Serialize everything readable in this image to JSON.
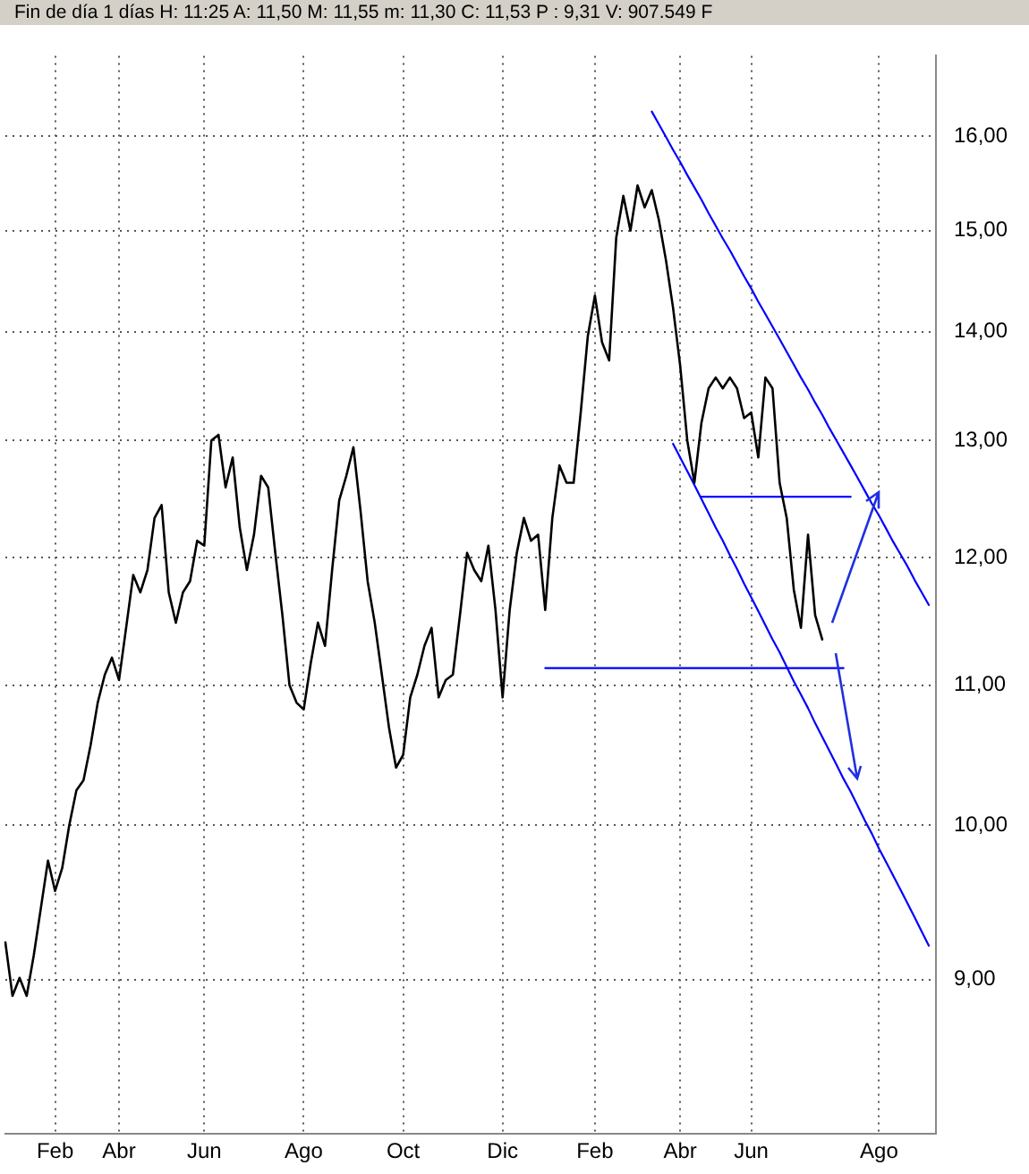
{
  "chart_data": {
    "type": "line",
    "title": "Fin de día 1 días H: 11:25 A: 11,50 M: 11,55 m: 11,30 C: 11,53 P : 9,31 V: 907.549 F",
    "log": "y",
    "grid": true,
    "legend": false,
    "marker": "none",
    "line_style": "solid",
    "ylim": [
      8.1,
      16.9
    ],
    "yticks": [
      {
        "value": 9,
        "label": "9,00"
      },
      {
        "value": 10,
        "label": "10,00"
      },
      {
        "value": 11,
        "label": "11,00"
      },
      {
        "value": 12,
        "label": "12,00"
      },
      {
        "value": 13,
        "label": "13,00"
      },
      {
        "value": 14,
        "label": "14,00"
      },
      {
        "value": 15,
        "label": "15,00"
      },
      {
        "value": 16,
        "label": "16,00"
      }
    ],
    "categories": [
      null,
      null,
      null,
      null,
      null,
      null,
      null,
      "Feb",
      null,
      null,
      null,
      null,
      null,
      null,
      null,
      null,
      "Abr",
      null,
      null,
      null,
      null,
      null,
      null,
      null,
      null,
      null,
      null,
      null,
      "Jun",
      null,
      null,
      null,
      null,
      null,
      null,
      null,
      null,
      null,
      null,
      null,
      null,
      null,
      "Ago",
      null,
      null,
      null,
      null,
      null,
      null,
      null,
      null,
      null,
      null,
      null,
      null,
      null,
      "Oct",
      null,
      null,
      null,
      null,
      null,
      null,
      null,
      null,
      null,
      null,
      null,
      null,
      null,
      "Dic",
      null,
      null,
      null,
      null,
      null,
      null,
      null,
      null,
      null,
      null,
      null,
      null,
      "Feb",
      null,
      null,
      null,
      null,
      null,
      null,
      null,
      null,
      null,
      null,
      null,
      "Abr",
      null,
      null,
      null,
      null,
      null,
      null,
      null,
      null,
      null,
      "Jun",
      null,
      null,
      null,
      null,
      null,
      null,
      null,
      null,
      null,
      null,
      null,
      null,
      null,
      null,
      null,
      null,
      null,
      "Ago",
      null,
      null,
      null,
      null,
      null,
      null,
      null,
      null
    ],
    "series": [
      {
        "type": "line",
        "color": "#000000",
        "values": [
          9.23,
          8.9,
          9.01,
          8.9,
          9.15,
          9.45,
          9.76,
          9.56,
          9.71,
          10.0,
          10.24,
          10.31,
          10.56,
          10.87,
          11.08,
          11.21,
          11.04,
          11.44,
          11.86,
          11.72,
          11.9,
          12.33,
          12.44,
          11.72,
          11.48,
          11.72,
          11.81,
          12.14,
          12.1,
          13.0,
          13.05,
          12.59,
          12.85,
          12.25,
          11.9,
          12.19,
          12.69,
          12.59,
          12.04,
          11.54,
          11.0,
          10.87,
          10.82,
          11.17,
          11.48,
          11.3,
          11.9,
          12.48,
          12.69,
          12.94,
          12.39,
          11.81,
          11.48,
          11.08,
          10.69,
          10.4,
          10.49,
          10.91,
          11.08,
          11.3,
          11.44,
          10.91,
          11.04,
          11.08,
          11.54,
          12.04,
          11.9,
          11.81,
          12.1,
          11.58,
          10.91,
          11.58,
          12.04,
          12.33,
          12.14,
          12.19,
          11.58,
          12.33,
          12.78,
          12.63,
          12.63,
          13.25,
          13.96,
          14.35,
          13.9,
          13.73,
          14.93,
          15.36,
          15.0,
          15.47,
          15.24,
          15.42,
          15.11,
          14.7,
          14.23,
          13.68,
          13.0,
          12.63,
          13.16,
          13.47,
          13.57,
          13.47,
          13.57,
          13.47,
          13.2,
          13.25,
          12.85,
          13.57,
          13.47,
          12.63,
          12.33,
          11.74,
          11.44,
          12.19,
          11.54,
          11.35,
          null,
          null,
          null,
          null,
          null,
          null,
          null,
          null,
          null,
          null,
          null,
          null,
          null,
          null,
          null,
          null
        ]
      },
      {
        "type": "line",
        "color": "#0000ff",
        "values": [
          null,
          null,
          null,
          null,
          null,
          null,
          null,
          null,
          null,
          null,
          null,
          null,
          null,
          null,
          null,
          null,
          null,
          null,
          null,
          null,
          null,
          null,
          null,
          null,
          null,
          null,
          null,
          null,
          null,
          null,
          null,
          null,
          null,
          null,
          null,
          null,
          null,
          null,
          null,
          null,
          null,
          null,
          null,
          null,
          null,
          null,
          null,
          null,
          null,
          null,
          null,
          null,
          null,
          null,
          null,
          null,
          null,
          null,
          null,
          null,
          null,
          null,
          null,
          null,
          null,
          null,
          null,
          null,
          null,
          null,
          null,
          null,
          null,
          null,
          null,
          null,
          null,
          null,
          null,
          null,
          null,
          null,
          null,
          null,
          null,
          null,
          null,
          null,
          null,
          null,
          null,
          16.27,
          16.13,
          15.99,
          15.85,
          15.72,
          15.58,
          15.45,
          15.32,
          15.18,
          15.05,
          14.92,
          14.8,
          14.67,
          14.54,
          14.42,
          14.29,
          14.17,
          14.05,
          13.93,
          13.81,
          13.69,
          13.57,
          13.46,
          13.34,
          13.23,
          13.11,
          13.0,
          12.89,
          12.78,
          12.67,
          12.56,
          12.45,
          12.35,
          12.24,
          12.13,
          12.03,
          11.93,
          11.82,
          11.72,
          11.62,
          null
        ]
      },
      {
        "type": "line",
        "color": "#0000ff",
        "values": [
          null,
          null,
          null,
          null,
          null,
          null,
          null,
          null,
          null,
          null,
          null,
          null,
          null,
          null,
          null,
          null,
          null,
          null,
          null,
          null,
          null,
          null,
          null,
          null,
          null,
          null,
          null,
          null,
          null,
          null,
          null,
          null,
          null,
          null,
          null,
          null,
          null,
          null,
          null,
          null,
          null,
          null,
          null,
          null,
          null,
          null,
          null,
          null,
          null,
          null,
          null,
          null,
          null,
          null,
          null,
          null,
          null,
          null,
          null,
          null,
          null,
          null,
          null,
          null,
          null,
          null,
          null,
          null,
          null,
          null,
          null,
          null,
          null,
          null,
          null,
          null,
          null,
          null,
          null,
          null,
          null,
          null,
          null,
          null,
          null,
          null,
          null,
          null,
          null,
          null,
          null,
          null,
          null,
          null,
          12.97,
          12.85,
          12.73,
          12.61,
          12.49,
          12.37,
          12.25,
          12.14,
          12.02,
          11.91,
          11.79,
          11.68,
          11.57,
          11.46,
          11.35,
          11.25,
          11.14,
          11.03,
          10.93,
          10.83,
          10.72,
          10.62,
          10.52,
          10.42,
          10.32,
          10.23,
          10.13,
          10.03,
          9.94,
          9.84,
          9.75,
          9.66,
          9.57,
          9.48,
          9.39,
          9.3,
          9.21,
          null
        ]
      },
      {
        "type": "line",
        "color": "#0000ff",
        "values": [
          null,
          null,
          null,
          null,
          null,
          null,
          null,
          null,
          null,
          null,
          null,
          null,
          null,
          null,
          null,
          null,
          null,
          null,
          null,
          null,
          null,
          null,
          null,
          null,
          null,
          null,
          null,
          null,
          null,
          null,
          null,
          null,
          null,
          null,
          null,
          null,
          null,
          null,
          null,
          null,
          null,
          null,
          null,
          null,
          null,
          null,
          null,
          null,
          null,
          null,
          null,
          null,
          null,
          null,
          null,
          null,
          null,
          null,
          null,
          null,
          null,
          null,
          null,
          null,
          null,
          null,
          null,
          null,
          null,
          null,
          null,
          null,
          null,
          null,
          null,
          null,
          11.13,
          11.13,
          11.13,
          11.13,
          11.13,
          11.13,
          11.13,
          11.13,
          11.13,
          11.13,
          11.13,
          11.13,
          11.13,
          11.13,
          11.13,
          11.13,
          11.13,
          11.13,
          11.13,
          11.13,
          11.13,
          11.13,
          11.13,
          11.13,
          11.13,
          11.13,
          11.13,
          11.13,
          11.13,
          11.13,
          11.13,
          11.13,
          11.13,
          11.13,
          11.13,
          11.13,
          11.13,
          11.13,
          11.13,
          11.13,
          11.13,
          11.13,
          11.13,
          null,
          null,
          null,
          null,
          null,
          null,
          null,
          null,
          null,
          null,
          null,
          null,
          null
        ]
      },
      {
        "type": "line",
        "color": "#0000ff",
        "values": [
          null,
          null,
          null,
          null,
          null,
          null,
          null,
          null,
          null,
          null,
          null,
          null,
          null,
          null,
          null,
          null,
          null,
          null,
          null,
          null,
          null,
          null,
          null,
          null,
          null,
          null,
          null,
          null,
          null,
          null,
          null,
          null,
          null,
          null,
          null,
          null,
          null,
          null,
          null,
          null,
          null,
          null,
          null,
          null,
          null,
          null,
          null,
          null,
          null,
          null,
          null,
          null,
          null,
          null,
          null,
          null,
          null,
          null,
          null,
          null,
          null,
          null,
          null,
          null,
          null,
          null,
          null,
          null,
          null,
          null,
          null,
          null,
          null,
          null,
          null,
          null,
          null,
          null,
          null,
          null,
          null,
          null,
          null,
          null,
          null,
          null,
          null,
          null,
          null,
          null,
          null,
          null,
          null,
          null,
          null,
          null,
          null,
          null,
          12.51,
          12.51,
          12.51,
          12.51,
          12.51,
          12.51,
          12.51,
          12.51,
          12.51,
          12.51,
          12.51,
          12.51,
          12.51,
          12.51,
          12.51,
          12.51,
          12.51,
          12.51,
          12.51,
          12.51,
          12.51,
          12.51,
          null,
          null,
          null,
          null,
          null,
          null,
          null,
          null,
          null,
          null,
          null,
          null
        ]
      }
    ]
  }
}
